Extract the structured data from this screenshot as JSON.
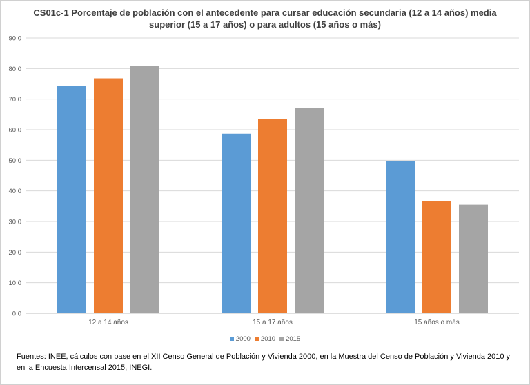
{
  "chart_data": {
    "type": "bar",
    "title": "CS01c-1 Porcentaje de población con el antecedente para cursar educación secundaria (12 a 14 años) media superior (15 a 17 años) o para adultos (15 años o más)",
    "categories": [
      "12 a 14 años",
      "15 a 17 años",
      "15 años o más"
    ],
    "series": [
      {
        "name": "2000",
        "color": "#5b9bd5",
        "values": [
          74.3,
          58.7,
          49.8
        ]
      },
      {
        "name": "2010",
        "color": "#ed7d31",
        "values": [
          76.8,
          63.5,
          36.6
        ]
      },
      {
        "name": "2015",
        "color": "#a5a5a5",
        "values": [
          80.8,
          67.1,
          35.5
        ]
      }
    ],
    "y_ticks": [
      "0.0",
      "10.0",
      "20.0",
      "30.0",
      "40.0",
      "50.0",
      "60.0",
      "70.0",
      "80.0",
      "90.0"
    ],
    "ylim": [
      0,
      90
    ],
    "grid": true,
    "legend_position": "bottom",
    "source": "Fuentes: INEE, cálculos con base en el XII Censo General de Población y Vivienda 2000, en la Muestra del Censo de Población y Vivienda 2010 y en la Encuesta Intercensal 2015, INEGI."
  }
}
